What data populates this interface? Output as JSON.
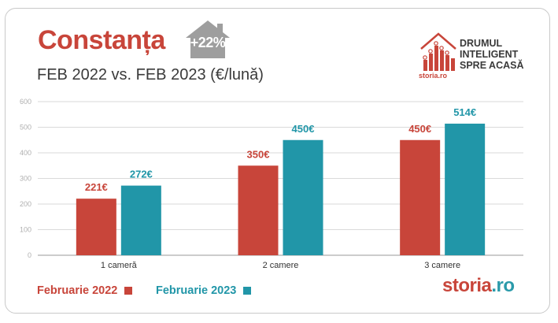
{
  "header": {
    "title": "Constanța",
    "badge": "+22%",
    "subtitle": "FEB 2022 vs. FEB 2023 (€/lună)"
  },
  "logo": {
    "line1": "DRUMUL",
    "line2": "INTELIGENT",
    "line3": "SPRE ACASĂ",
    "small": "storia.ro"
  },
  "brand": {
    "part1": "storia",
    "part2": ".ro",
    "color1": "#c8453a",
    "color2": "#2a9aaa"
  },
  "legend": [
    {
      "label": "Februarie 2022",
      "color": "#c8453a"
    },
    {
      "label": "Februarie 2023",
      "color": "#2196a8"
    }
  ],
  "chart_data": {
    "type": "bar",
    "categories": [
      "1 cameră",
      "2 camere",
      "3 camere"
    ],
    "series": [
      {
        "name": "Februarie 2022",
        "values": [
          221,
          350,
          450
        ],
        "labels": [
          "221€",
          "350€",
          "450€"
        ],
        "color": "#c8453a"
      },
      {
        "name": "Februarie 2023",
        "values": [
          272,
          450,
          514
        ],
        "labels": [
          "272€",
          "450€",
          "514€"
        ],
        "color": "#2196a8"
      }
    ],
    "ylim": [
      0,
      600
    ],
    "yticks": [
      "0",
      "100",
      "200",
      "300",
      "400",
      "500",
      "600"
    ],
    "grid": true,
    "legend_position": "bottom-left"
  }
}
